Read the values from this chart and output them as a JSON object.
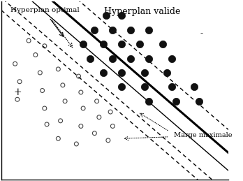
{
  "figsize": [
    3.48,
    2.59
  ],
  "dpi": 100,
  "bg_color": "#ffffff",
  "title": "Hyperplan valide",
  "title_fontsize": 9,
  "label_optimal": "Hyperplan optimal",
  "label_optimal_fontsize": 7.5,
  "label_plus": "+",
  "label_plus_fontsize": 10,
  "label_minus": "-",
  "label_minus_fontsize": 9,
  "label_marge": "Marge maximale",
  "label_marge_fontsize": 7,
  "xlim": [
    0,
    10
  ],
  "ylim": [
    0,
    10
  ],
  "open_circles": [
    [
      0.6,
      6.5
    ],
    [
      0.8,
      5.5
    ],
    [
      0.7,
      4.5
    ],
    [
      1.5,
      7.0
    ],
    [
      1.7,
      6.0
    ],
    [
      1.8,
      5.0
    ],
    [
      1.9,
      4.0
    ],
    [
      2.0,
      3.1
    ],
    [
      2.5,
      6.2
    ],
    [
      2.7,
      5.3
    ],
    [
      2.8,
      4.4
    ],
    [
      2.6,
      3.3
    ],
    [
      2.5,
      2.3
    ],
    [
      3.4,
      5.8
    ],
    [
      3.5,
      4.9
    ],
    [
      3.6,
      4.0
    ],
    [
      3.5,
      3.0
    ],
    [
      3.3,
      2.0
    ],
    [
      4.2,
      4.4
    ],
    [
      4.3,
      3.5
    ],
    [
      4.1,
      2.6
    ],
    [
      4.8,
      3.8
    ],
    [
      4.9,
      3.0
    ],
    [
      4.7,
      2.2
    ],
    [
      1.2,
      7.8
    ],
    [
      1.9,
      7.5
    ]
  ],
  "filled_circles": [
    [
      4.6,
      9.2
    ],
    [
      5.3,
      9.2
    ],
    [
      4.1,
      8.4
    ],
    [
      4.9,
      8.4
    ],
    [
      5.7,
      8.4
    ],
    [
      6.5,
      8.4
    ],
    [
      3.6,
      7.6
    ],
    [
      4.5,
      7.6
    ],
    [
      5.3,
      7.6
    ],
    [
      6.1,
      7.6
    ],
    [
      7.1,
      7.6
    ],
    [
      3.9,
      6.8
    ],
    [
      4.9,
      6.8
    ],
    [
      5.7,
      6.8
    ],
    [
      6.5,
      6.8
    ],
    [
      7.5,
      6.8
    ],
    [
      4.5,
      6.0
    ],
    [
      5.3,
      6.0
    ],
    [
      6.3,
      6.0
    ],
    [
      7.3,
      6.0
    ],
    [
      5.3,
      5.2
    ],
    [
      6.3,
      5.2
    ],
    [
      7.5,
      5.2
    ],
    [
      8.5,
      5.2
    ],
    [
      6.5,
      4.4
    ],
    [
      7.7,
      4.4
    ],
    [
      8.7,
      4.4
    ]
  ],
  "open_circle_size": 18,
  "filled_circle_size": 55,
  "open_circle_lw": 0.8,
  "line_slope": -1.1,
  "solid_line1": {
    "intercept": 12.5,
    "lw": 2.2
  },
  "solid_line2": {
    "intercept": 11.5,
    "lw": 1.0
  },
  "dashed_line_upper": {
    "intercept": 13.8,
    "lw": 1.0,
    "dashes": [
      4,
      3
    ]
  },
  "dashed_line_lower": {
    "intercept": 10.2,
    "lw": 1.0,
    "dashes": [
      4,
      3
    ]
  },
  "valid_line": {
    "intercept": 9.5,
    "lw": 1.0,
    "dashes": [
      4,
      3
    ]
  }
}
